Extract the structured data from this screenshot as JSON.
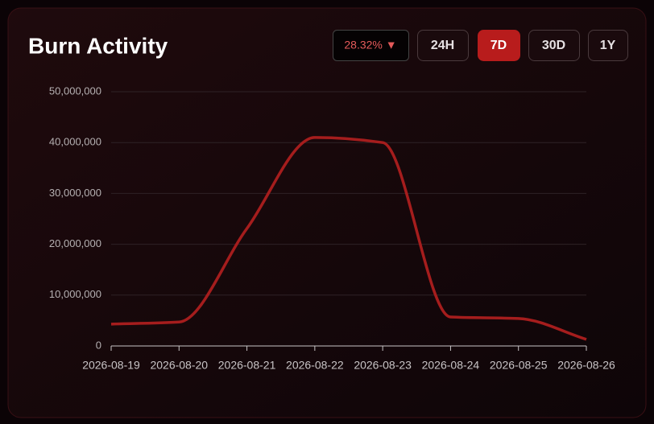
{
  "chart_data": {
    "type": "line",
    "title": "Burn Activity",
    "change_badge": "28.32% ▼",
    "ranges": [
      "24H",
      "7D",
      "30D",
      "1Y"
    ],
    "selected_range": "7D",
    "x": [
      "2026-08-19",
      "2026-08-20",
      "2026-08-21",
      "2026-08-22",
      "2026-08-23",
      "2026-08-24",
      "2026-08-25",
      "2026-08-26"
    ],
    "values": [
      4300000,
      4700000,
      23100000,
      41000000,
      40000000,
      5700000,
      5400000,
      1300000
    ],
    "color": "#a51d1d",
    "ylim": [
      0,
      50000000
    ],
    "yticks": [
      0,
      {
        "value": 10000000,
        "label": "10,000,000"
      },
      {
        "value": 20000000,
        "label": "20,000,000"
      },
      {
        "value": 30000000,
        "label": "30,000,000"
      },
      {
        "value": 40000000,
        "label": "40,000,000"
      },
      {
        "value": 50000000,
        "label": "50,000,000"
      }
    ],
    "grid": true
  }
}
